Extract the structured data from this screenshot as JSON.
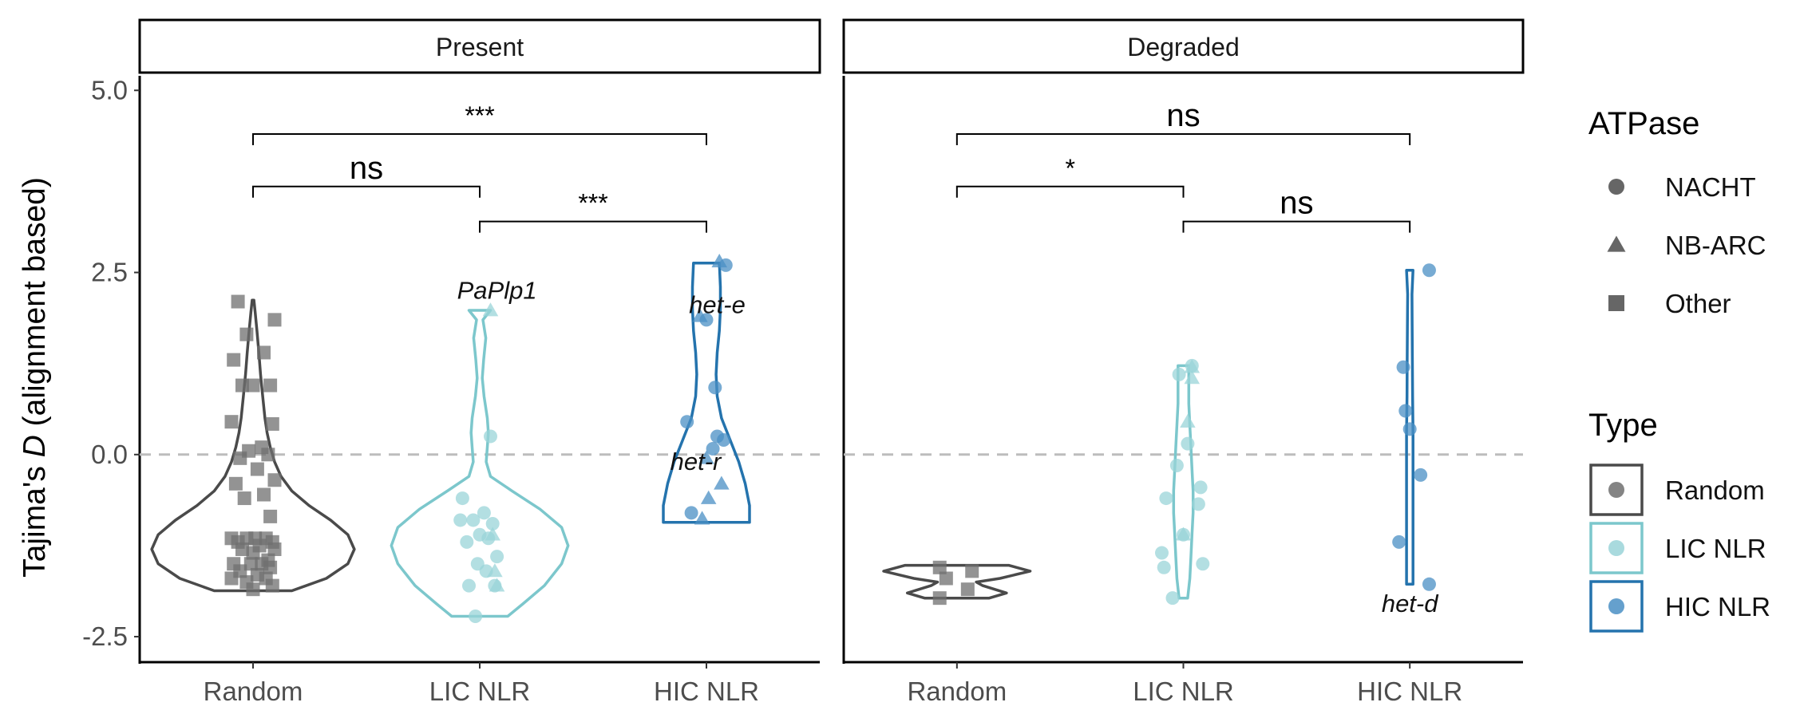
{
  "chart_data": {
    "type": "violin",
    "ylabel_prefix": "Tajima's ",
    "ylabel_var": "D",
    "ylabel_suffix": " (alignment based)",
    "ylim": [
      -2.85,
      5.2
    ],
    "yticks": [
      -2.5,
      0.0,
      2.5,
      5.0
    ],
    "ytick_labels": [
      "-2.5",
      "0.0",
      "2.5",
      "5.0"
    ],
    "categories": [
      "Random",
      "LIC NLR",
      "HIC NLR"
    ],
    "reference_line": 0,
    "colors": {
      "Random": "#4a4a4a",
      "LIC NLR": "#7cc7cc",
      "HIC NLR": "#2473ad"
    },
    "point_colors": {
      "Random": "#6f6f6f",
      "LIC NLR": "#9ad4d8",
      "HIC NLR": "#4a8fc4"
    },
    "panels": [
      {
        "title": "Present",
        "violins": [
          {
            "category": "Random",
            "min": -1.87,
            "max": 2.12,
            "profile": [
              [
                -1.87,
                0.18
              ],
              [
                -1.7,
                0.34
              ],
              [
                -1.5,
                0.44
              ],
              [
                -1.3,
                0.47
              ],
              [
                -1.1,
                0.44
              ],
              [
                -0.9,
                0.36
              ],
              [
                -0.7,
                0.26
              ],
              [
                -0.5,
                0.18
              ],
              [
                -0.3,
                0.13
              ],
              [
                -0.1,
                0.1
              ],
              [
                0.1,
                0.08
              ],
              [
                0.3,
                0.065
              ],
              [
                0.5,
                0.055
              ],
              [
                0.8,
                0.045
              ],
              [
                1.1,
                0.035
              ],
              [
                1.4,
                0.027
              ],
              [
                1.7,
                0.018
              ],
              [
                1.95,
                0.01
              ],
              [
                2.12,
                0.004
              ]
            ]
          },
          {
            "category": "LIC NLR",
            "min": -2.22,
            "max": 1.98,
            "profile": [
              [
                -2.22,
                0.13
              ],
              [
                -2.05,
                0.2
              ],
              [
                -1.8,
                0.3
              ],
              [
                -1.5,
                0.38
              ],
              [
                -1.25,
                0.41
              ],
              [
                -1.0,
                0.38
              ],
              [
                -0.75,
                0.28
              ],
              [
                -0.5,
                0.15
              ],
              [
                -0.3,
                0.05
              ],
              [
                -0.1,
                0.03
              ],
              [
                0.1,
                0.035
              ],
              [
                0.3,
                0.04
              ],
              [
                0.5,
                0.035
              ],
              [
                0.8,
                0.02
              ],
              [
                1.05,
                0.012
              ],
              [
                1.3,
                0.018
              ],
              [
                1.6,
                0.028
              ],
              [
                1.85,
                0.015
              ],
              [
                1.98,
                0.05
              ]
            ]
          },
          {
            "category": "HIC NLR",
            "min": -0.93,
            "max": 2.63,
            "profile": [
              [
                -0.93,
                0.2
              ],
              [
                -0.7,
                0.2
              ],
              [
                -0.4,
                0.18
              ],
              [
                -0.1,
                0.15
              ],
              [
                0.2,
                0.11
              ],
              [
                0.5,
                0.07
              ],
              [
                0.8,
                0.05
              ],
              [
                1.1,
                0.045
              ],
              [
                1.4,
                0.05
              ],
              [
                1.7,
                0.06
              ],
              [
                2.0,
                0.065
              ],
              [
                2.3,
                0.065
              ],
              [
                2.63,
                0.06
              ]
            ]
          }
        ],
        "points": [
          {
            "category": "Random",
            "atpase": "Other",
            "jitter": [
              -0.07,
              0.1,
              -0.03,
              0.05,
              -0.09,
              0.08,
              0.0,
              -0.05,
              0.09,
              -0.1,
              0.04,
              -0.02,
              0.07,
              -0.06,
              0.02,
              0.1,
              -0.08,
              0.05,
              -0.04,
              0.08,
              0.01,
              -0.1,
              0.06,
              -0.03,
              0.09,
              -0.07,
              0.03,
              0.1,
              -0.05,
              0.0,
              0.07,
              -0.09,
              0.04,
              -0.01,
              0.08,
              -0.06,
              0.02,
              -0.1,
              0.06,
              -0.03,
              0.09,
              0.0
            ],
            "values": [
              2.1,
              1.85,
              1.65,
              1.4,
              1.3,
              0.95,
              0.95,
              0.95,
              0.42,
              0.45,
              0.1,
              0.05,
              0.0,
              -0.05,
              -0.2,
              -0.35,
              -0.4,
              -0.55,
              -0.6,
              -0.85,
              -1.15,
              -1.15,
              -1.15,
              -1.15,
              -1.2,
              -1.2,
              -1.25,
              -1.3,
              -1.3,
              -1.35,
              -1.45,
              -1.5,
              -1.5,
              -1.5,
              -1.55,
              -1.6,
              -1.65,
              -1.7,
              -1.7,
              -1.75,
              -1.8,
              -1.85
            ]
          },
          {
            "category": "LIC NLR",
            "atpase": "NACHT",
            "jitter": [
              0.05,
              -0.08,
              0.02,
              -0.03,
              0.06,
              -0.09,
              0.0,
              0.04,
              -0.06,
              0.08,
              -0.01,
              0.03,
              -0.05,
              0.07,
              -0.02
            ],
            "values": [
              0.25,
              -0.6,
              -0.8,
              -0.9,
              -0.95,
              -0.9,
              -1.1,
              -1.15,
              -1.2,
              -1.4,
              -1.5,
              -1.6,
              -1.8,
              -1.8,
              -2.22
            ]
          },
          {
            "category": "LIC NLR",
            "atpase": "NB-ARC",
            "jitter": [
              0.05,
              0.06,
              0.07,
              0.08
            ],
            "values": [
              1.98,
              -1.1,
              -1.6,
              -1.8
            ]
          },
          {
            "category": "HIC NLR",
            "atpase": "NACHT",
            "jitter": [
              0.09,
              0.0,
              0.04,
              -0.09,
              0.05,
              0.08,
              -0.07,
              0.03
            ],
            "values": [
              2.6,
              1.85,
              0.92,
              0.45,
              0.25,
              0.2,
              -0.8,
              0.08
            ]
          },
          {
            "category": "HIC NLR",
            "atpase": "NB-ARC",
            "jitter": [
              0.06,
              -0.03,
              0.0,
              0.07,
              0.01,
              -0.02
            ],
            "values": [
              2.65,
              1.9,
              -0.05,
              -0.4,
              -0.6,
              -0.88
            ]
          }
        ],
        "brackets": [
          {
            "from": "Random",
            "to": "HIC NLR",
            "y": 4.4,
            "label": "***",
            "size": "small"
          },
          {
            "from": "Random",
            "to": "LIC NLR",
            "y": 3.68,
            "label": "ns",
            "size": "large"
          },
          {
            "from": "LIC NLR",
            "to": "HIC NLR",
            "y": 3.2,
            "label": "***",
            "size": "small"
          }
        ],
        "annotations": [
          {
            "text": "PaPlp1",
            "x_cat": "LIC NLR",
            "dx": 0.08,
            "y": 2.25
          },
          {
            "text": "het-e",
            "x_cat": "HIC NLR",
            "dx": 0.05,
            "y": 2.05
          },
          {
            "text": "het-r",
            "x_cat": "HIC NLR",
            "dx": -0.05,
            "y": -0.1
          }
        ]
      },
      {
        "title": "Degraded",
        "violins": [
          {
            "category": "Random",
            "min": -1.97,
            "max": -1.52,
            "profile": [
              [
                -1.97,
                0.15
              ],
              [
                -1.9,
                0.23
              ],
              [
                -1.8,
                0.12
              ],
              [
                -1.75,
                0.09
              ],
              [
                -1.7,
                0.2
              ],
              [
                -1.6,
                0.34
              ],
              [
                -1.52,
                0.24
              ]
            ]
          },
          {
            "category": "LIC NLR",
            "min": -1.97,
            "max": 1.22,
            "profile": [
              [
                -1.97,
                0.02
              ],
              [
                -1.7,
                0.03
              ],
              [
                -1.4,
                0.035
              ],
              [
                -1.1,
                0.04
              ],
              [
                -0.8,
                0.045
              ],
              [
                -0.5,
                0.045
              ],
              [
                -0.2,
                0.04
              ],
              [
                0.1,
                0.035
              ],
              [
                0.4,
                0.03
              ],
              [
                0.7,
                0.025
              ],
              [
                1.0,
                0.025
              ],
              [
                1.22,
                0.025
              ]
            ]
          },
          {
            "category": "HIC NLR",
            "min": -1.78,
            "max": 2.53,
            "profile": [
              [
                -1.78,
                0.015
              ],
              [
                -1.0,
                0.015
              ],
              [
                -0.3,
                0.015
              ],
              [
                0.3,
                0.015
              ],
              [
                0.8,
                0.013
              ],
              [
                1.3,
                0.012
              ],
              [
                1.8,
                0.011
              ],
              [
                2.2,
                0.01
              ],
              [
                2.53,
                0.015
              ]
            ]
          }
        ],
        "points": [
          {
            "category": "Random",
            "atpase": "Other",
            "jitter": [
              -0.08,
              0.07,
              -0.05,
              0.05,
              -0.08
            ],
            "values": [
              -1.55,
              -1.6,
              -1.7,
              -1.85,
              -1.97
            ]
          },
          {
            "category": "LIC NLR",
            "atpase": "NACHT",
            "jitter": [
              0.04,
              -0.02,
              0.02,
              -0.03,
              -0.1,
              0.09,
              -0.09,
              0.0,
              0.08,
              -0.08,
              0.07,
              -0.05
            ],
            "values": [
              1.22,
              1.1,
              0.15,
              -0.15,
              -1.35,
              -1.5,
              -1.55,
              -1.1,
              -0.45,
              -0.6,
              -0.68,
              -1.97
            ]
          },
          {
            "category": "LIC NLR",
            "atpase": "NB-ARC",
            "jitter": [
              0.04,
              0.0,
              0.02,
              0.04
            ],
            "values": [
              1.05,
              -1.1,
              0.45,
              1.2
            ]
          },
          {
            "category": "HIC NLR",
            "atpase": "NACHT",
            "jitter": [
              0.09,
              -0.03,
              -0.02,
              0.0,
              0.05,
              -0.05,
              0.09
            ],
            "values": [
              2.53,
              1.2,
              0.6,
              0.35,
              -0.28,
              -1.2,
              -1.78
            ]
          }
        ],
        "brackets": [
          {
            "from": "Random",
            "to": "HIC NLR",
            "y": 4.4,
            "label": "ns",
            "size": "large"
          },
          {
            "from": "Random",
            "to": "LIC NLR",
            "y": 3.68,
            "label": "*",
            "size": "small"
          },
          {
            "from": "LIC NLR",
            "to": "HIC NLR",
            "y": 3.2,
            "label": "ns",
            "size": "large"
          }
        ],
        "annotations": [
          {
            "text": "het-d",
            "x_cat": "HIC NLR",
            "dx": 0.0,
            "y": -2.05
          }
        ]
      }
    ],
    "legend": {
      "placement": "right",
      "atpase": {
        "title": "ATPase",
        "items": [
          {
            "label": "NACHT",
            "shape": "circle"
          },
          {
            "label": "NB-ARC",
            "shape": "triangle"
          },
          {
            "label": "Other",
            "shape": "square"
          }
        ]
      },
      "type": {
        "title": "Type",
        "items": [
          {
            "label": "Random",
            "key": "Random"
          },
          {
            "label": "LIC NLR",
            "key": "LIC NLR"
          },
          {
            "label": "HIC NLR",
            "key": "HIC NLR"
          }
        ]
      }
    }
  }
}
